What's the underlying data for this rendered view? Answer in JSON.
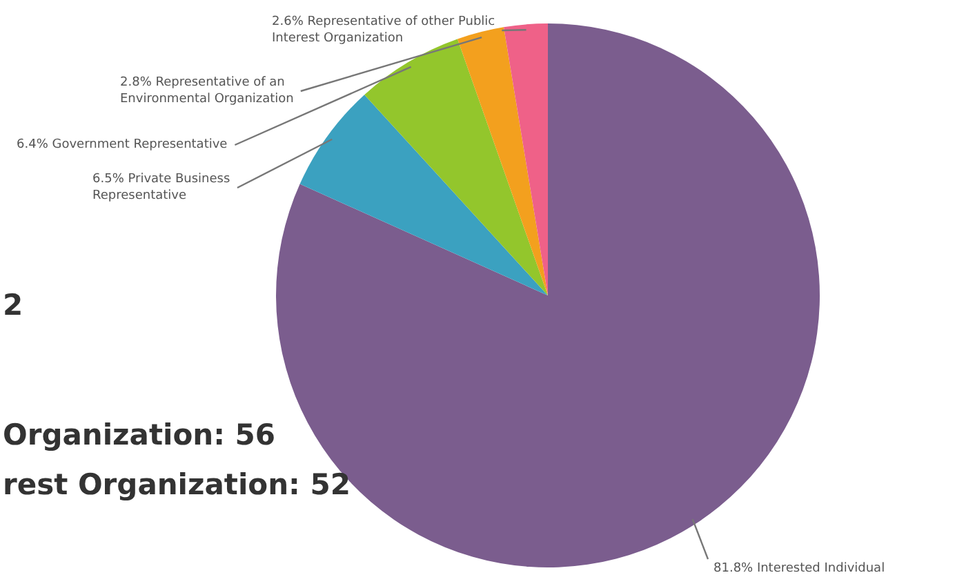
{
  "chart_data": {
    "type": "pie",
    "categories": [
      "Interested Individual",
      "Private Business Representative",
      "Government Representative",
      "Representative of an Environmental Organization",
      "Representative of other Public Interest Organization"
    ],
    "values": [
      81.8,
      6.5,
      6.4,
      2.8,
      2.6
    ],
    "value_labels": [
      "81.8%",
      "6.5%",
      "6.4%",
      "2.8%",
      "2.6%"
    ],
    "colors": [
      "#7b5d8e",
      "#3ba1c0",
      "#93c62c",
      "#f3a01e",
      "#ef6188"
    ],
    "annotations": [
      "2",
      "Organization: 56",
      "rest Organization: 52"
    ]
  }
}
